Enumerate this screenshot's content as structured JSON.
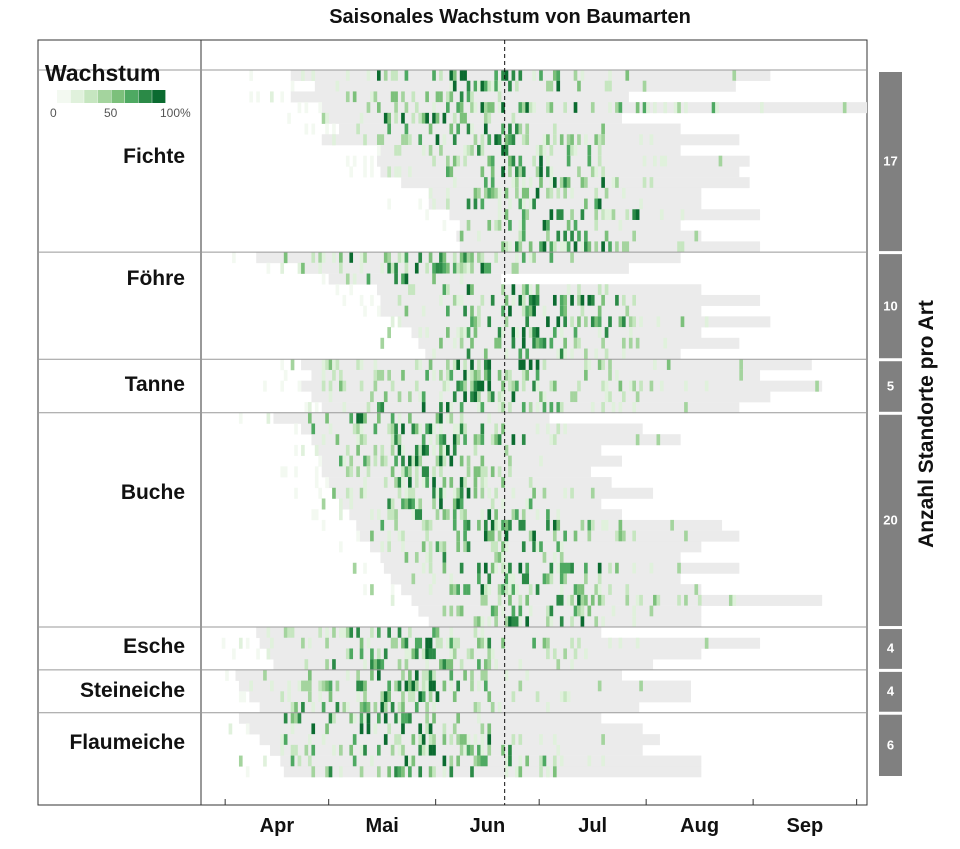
{
  "chart_data": {
    "type": "heatmap",
    "title": "Saisonales Wachstum von Baumarten",
    "xlabel": "",
    "right_label": "Anzahl Standorte pro Art",
    "x_unit": "day of year",
    "xlim": [
      84,
      277
    ],
    "x_ticks": [
      {
        "label": "Apr",
        "doy": 91
      },
      {
        "label": "Mai",
        "doy": 121
      },
      {
        "label": "Jun",
        "doy": 152
      },
      {
        "label": "Jul",
        "doy": 182
      },
      {
        "label": "Aug",
        "doy": 213
      },
      {
        "label": "Sep",
        "doy": 244
      }
    ],
    "month_starts": [
      91,
      121,
      152,
      182,
      213,
      244,
      274
    ],
    "reference_line_doy": 172,
    "legend": {
      "title": "Wachstum",
      "ticks": [
        "0",
        "50",
        "100%"
      ],
      "colors": [
        "#f3f9f1",
        "#e0f1dc",
        "#c6e6c0",
        "#a4d49e",
        "#7cc07b",
        "#4ea962",
        "#2b8a47",
        "#0b6b30"
      ]
    },
    "no_growth_color": "#ebebeb",
    "count_bar_color": "#808080",
    "species": [
      {
        "name": "Fichte",
        "count": "17",
        "sites": [
          [
            110,
            249
          ],
          [
            117,
            239
          ],
          [
            110,
            208
          ],
          [
            119,
            277
          ],
          [
            119,
            206
          ],
          [
            124,
            223
          ],
          [
            119,
            240
          ],
          [
            136,
            223
          ],
          [
            135,
            243
          ],
          [
            136,
            240
          ],
          [
            142,
            243
          ],
          [
            150,
            229
          ],
          [
            150,
            229
          ],
          [
            156,
            246
          ],
          [
            159,
            223
          ],
          [
            158,
            229
          ],
          [
            159,
            246
          ]
        ]
      },
      {
        "name": "Föhre",
        "count": "10",
        "sites": [
          [
            100,
            223
          ],
          [
            113,
            208
          ],
          [
            121,
            171
          ],
          [
            135,
            229
          ],
          [
            136,
            246
          ],
          [
            136,
            229
          ],
          [
            142,
            249
          ],
          [
            145,
            229
          ],
          [
            147,
            240
          ],
          [
            149,
            223
          ]
        ]
      },
      {
        "name": "Tanne",
        "count": "5",
        "sites": [
          [
            113,
            261
          ],
          [
            116,
            246
          ],
          [
            113,
            264
          ],
          [
            116,
            249
          ],
          [
            119,
            240
          ]
        ]
      },
      {
        "name": "Buche",
        "count": "20",
        "sites": [
          [
            105,
            185
          ],
          [
            113,
            212
          ],
          [
            116,
            223
          ],
          [
            117,
            200
          ],
          [
            119,
            206
          ],
          [
            119,
            197
          ],
          [
            121,
            203
          ],
          [
            123,
            215
          ],
          [
            124,
            200
          ],
          [
            127,
            206
          ],
          [
            129,
            235
          ],
          [
            130,
            240
          ],
          [
            133,
            229
          ],
          [
            136,
            223
          ],
          [
            137,
            240
          ],
          [
            139,
            223
          ],
          [
            142,
            229
          ],
          [
            145,
            264
          ],
          [
            147,
            229
          ],
          [
            150,
            229
          ]
        ]
      },
      {
        "name": "Esche",
        "count": "4",
        "sites": [
          [
            100,
            200
          ],
          [
            101,
            246
          ],
          [
            104,
            229
          ],
          [
            105,
            215
          ]
        ]
      },
      {
        "name": "Steineiche",
        "count": "4",
        "sites": [
          [
            94,
            206
          ],
          [
            95,
            226
          ],
          [
            98,
            226
          ],
          [
            101,
            211
          ]
        ]
      },
      {
        "name": "Flaumeiche",
        "count": "6",
        "sites": [
          [
            95,
            200
          ],
          [
            98,
            212
          ],
          [
            101,
            217
          ],
          [
            104,
            212
          ],
          [
            107,
            229
          ],
          [
            108,
            229
          ]
        ]
      }
    ]
  }
}
